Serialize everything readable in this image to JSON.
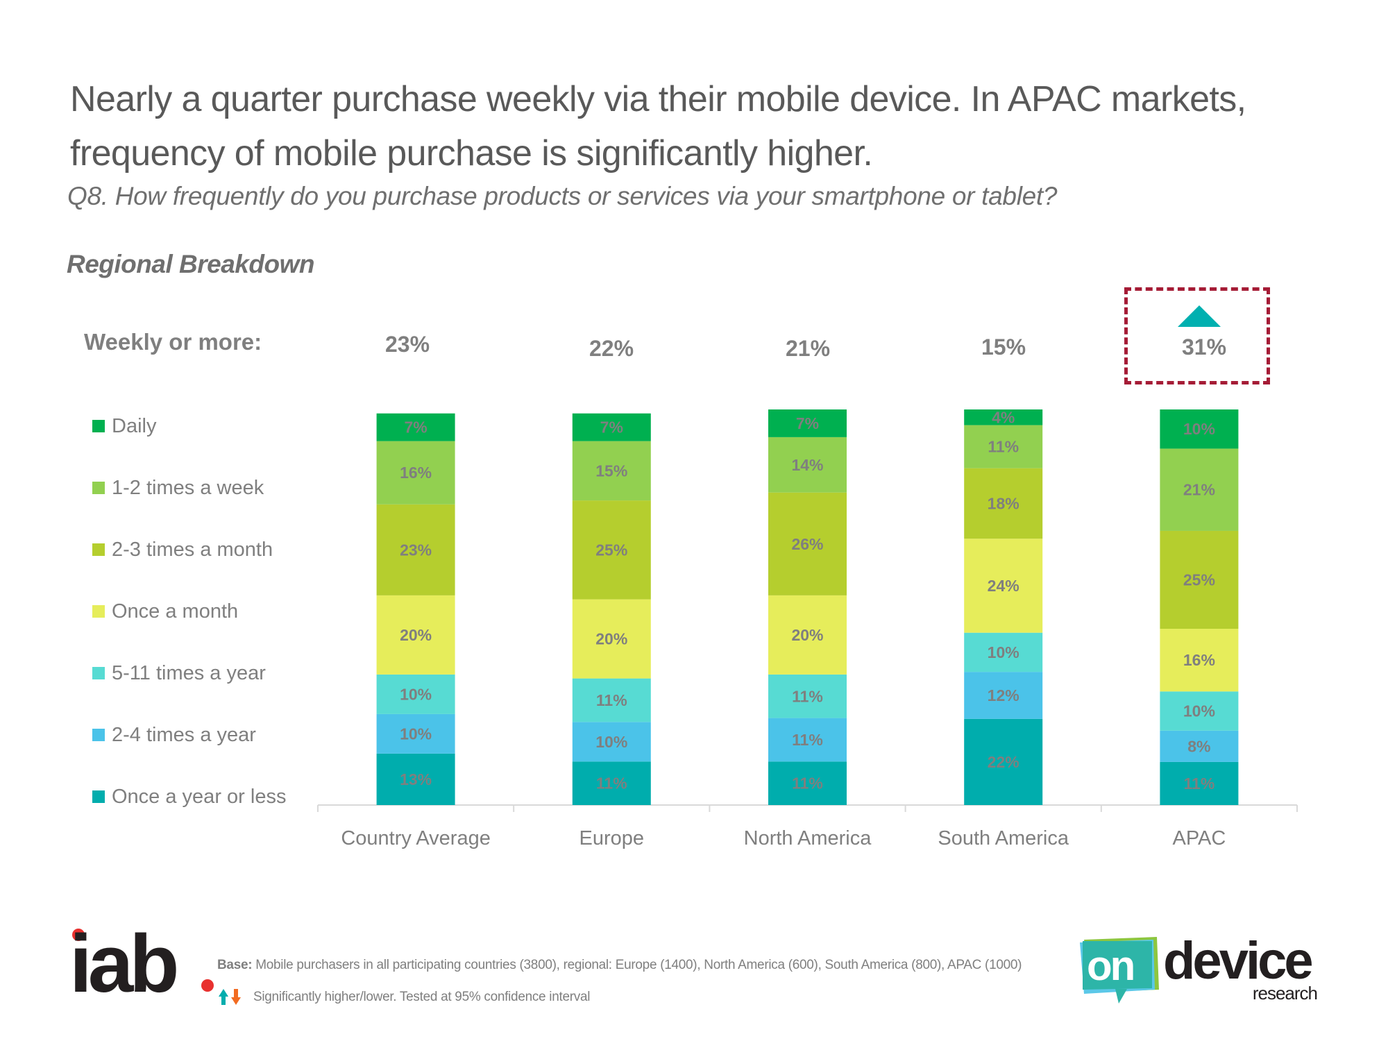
{
  "header": {
    "title_line1": "Nearly a quarter purchase weekly via their mobile device. In APAC markets,",
    "title_line2": "frequency of mobile purchase is significantly higher.",
    "question": "Q8. How frequently do you purchase products or services via your smartphone or tablet?",
    "section": "Regional Breakdown"
  },
  "weekly": {
    "label": "Weekly or more:",
    "values": [
      "23%",
      "22%",
      "21%",
      "15%",
      "31%"
    ],
    "highlighted_index": 4,
    "highlight_indicator": "significantly-higher",
    "highlight_color": "#A51C36",
    "up_arrow_color": "#00B0B0"
  },
  "chart_data": {
    "type": "bar",
    "stacked": true,
    "orientation": "vertical",
    "title": "Regional Breakdown",
    "xlabel": "",
    "ylabel": "",
    "ylim": [
      0,
      100
    ],
    "grid": false,
    "legend_position": "left",
    "categories": [
      "Country Average",
      "Europe",
      "North America",
      "South America",
      "APAC"
    ],
    "series": [
      {
        "name": "Daily",
        "color": "#00B050",
        "values": [
          7,
          7,
          7,
          4,
          10
        ]
      },
      {
        "name": "1-2 times a week",
        "color": "#92D050",
        "values": [
          16,
          15,
          14,
          11,
          21
        ]
      },
      {
        "name": "2-3 times a month",
        "color": "#B5CE2E",
        "values": [
          23,
          25,
          26,
          18,
          25
        ]
      },
      {
        "name": "Once a month",
        "color": "#E6ED5B",
        "values": [
          20,
          20,
          20,
          24,
          16
        ]
      },
      {
        "name": "5-11 times a year",
        "color": "#57DBD3",
        "values": [
          10,
          11,
          11,
          10,
          10
        ]
      },
      {
        "name": "2-4 times a year",
        "color": "#4BC3E9",
        "values": [
          10,
          10,
          11,
          12,
          8
        ]
      },
      {
        "name": "Once a year or less",
        "color": "#00ADAD",
        "values": [
          13,
          11,
          11,
          22,
          11
        ]
      }
    ]
  },
  "footer": {
    "base_label": "Base:",
    "base_text": " Mobile purchasers in all participating countries (3800), regional: Europe (1400), North America (600), South America (800), APAC (1000)",
    "significance_text": "Significantly higher/lower. Tested at 95% confidence interval",
    "left_logo": "iab.",
    "right_logo_on": "on",
    "right_logo_device": "device",
    "right_logo_research": "research",
    "up_arrow_color": "#00ADAD",
    "down_arrow_color": "#F26B21"
  }
}
